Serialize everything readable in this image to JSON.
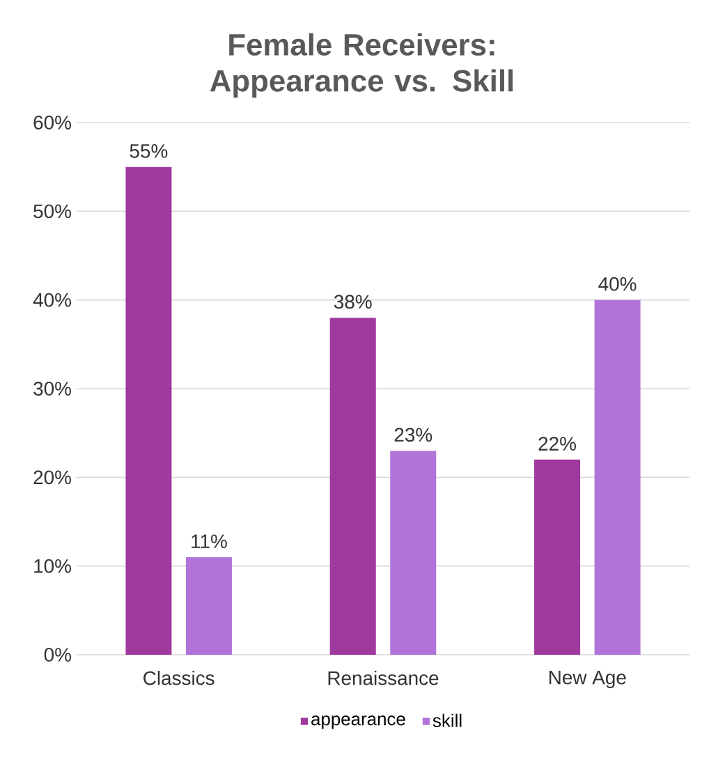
{
  "chart_data": {
    "type": "bar",
    "title": "Female Receivers: Appearance vs. Skill",
    "categories": [
      "Classics",
      "Renaissance",
      "New Age"
    ],
    "series": [
      {
        "name": "appearance",
        "color": "#a0399e",
        "values": [
          55,
          38,
          22
        ],
        "value_labels": [
          "55%",
          "38%",
          "22%"
        ]
      },
      {
        "name": "skill",
        "color": "#b073d9",
        "values": [
          11,
          23,
          40
        ],
        "value_labels": [
          "11%",
          "23%",
          "40%"
        ]
      }
    ],
    "ylim": [
      0,
      60
    ],
    "yticks": [
      {
        "value": 0,
        "label": "0%"
      },
      {
        "value": 10,
        "label": "10%"
      },
      {
        "value": 20,
        "label": "20%"
      },
      {
        "value": 30,
        "label": "30%"
      },
      {
        "value": 40,
        "label": "40%"
      },
      {
        "value": 50,
        "label": "50%"
      },
      {
        "value": 60,
        "label": "60%"
      }
    ],
    "grid": "y",
    "legend": "bottom"
  }
}
